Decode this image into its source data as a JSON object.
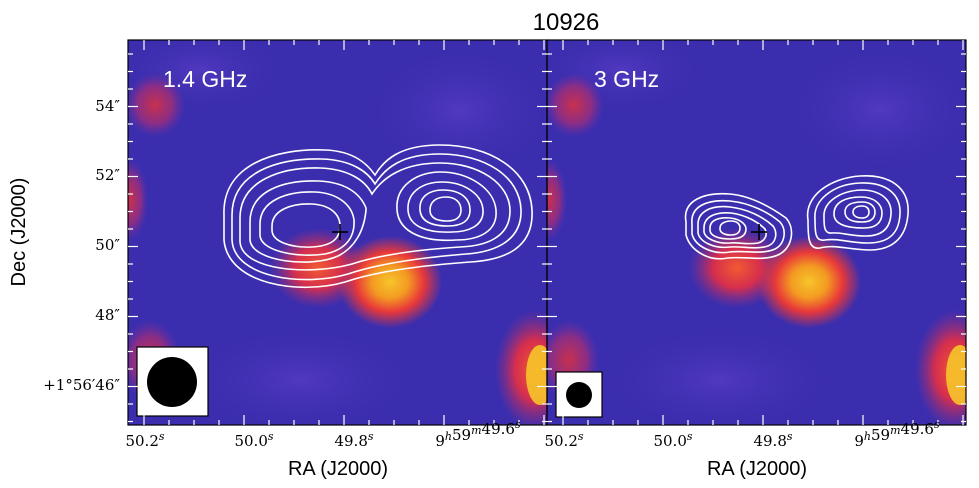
{
  "chart_data": {
    "type": "heatmap",
    "title": "10926",
    "xlabel": "RA (J2000)",
    "ylabel": "Dec (J2000)",
    "panels": [
      {
        "label": "1.4 GHz",
        "beam": "circular, large",
        "xticks": [
          "50.2^s",
          "50.0^s",
          "49.8^s",
          "9^h59^m49.6^s"
        ],
        "contours": "extended double-lobed source, 6 levels"
      },
      {
        "label": "3 GHz",
        "beam": "circular, small",
        "xticks": [
          "50.2^s",
          "50.0^s",
          "49.8^s",
          "9^h59^m49.6^s"
        ],
        "contours": "compact double source, 6 levels"
      }
    ],
    "yticks": [
      "54″",
      "52″",
      "50″",
      "48″",
      "+1°56′46″"
    ],
    "marker": "cross at optical position (RA 49.82^s, Dec 50.4″)",
    "colormap": "purple-red-yellow",
    "ra_range_s": [
      50.27,
      49.46
    ],
    "dec_range_arcsec": [
      45.2,
      56.0
    ]
  },
  "colors": {
    "background_low": "#3c2fb0",
    "mid": "#e8303a",
    "high": "#f4c028",
    "contour": "#ffffff"
  }
}
